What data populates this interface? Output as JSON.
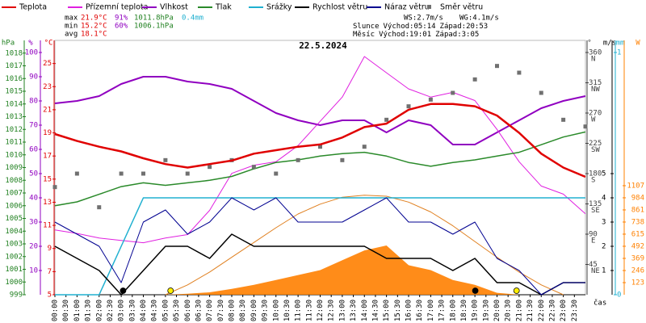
{
  "chart_data": {
    "type": "line",
    "title": "22.5.2024",
    "x_label": "čas",
    "xlim": [
      0,
      24
    ],
    "x": [
      0,
      1,
      2,
      3,
      4,
      5,
      6,
      7,
      8,
      9,
      10,
      11,
      12,
      13,
      14,
      15,
      16,
      17,
      18,
      19,
      20,
      21,
      22,
      23,
      24
    ],
    "xticks": [
      {
        "value": 0,
        "label": "00:00"
      },
      {
        "value": 0.5,
        "label": "00:30"
      },
      {
        "value": 1,
        "label": "01:00"
      },
      {
        "value": 1.5,
        "label": "01:30"
      },
      {
        "value": 2,
        "label": "02:00"
      },
      {
        "value": 2.5,
        "label": "02:30"
      },
      {
        "value": 3,
        "label": "03:00"
      },
      {
        "value": 3.5,
        "label": "03:30"
      },
      {
        "value": 4,
        "label": "04:00"
      },
      {
        "value": 4.5,
        "label": "04:30"
      },
      {
        "value": 5,
        "label": "05:00"
      },
      {
        "value": 5.5,
        "label": "05:30"
      },
      {
        "value": 6,
        "label": "06:00"
      },
      {
        "value": 6.5,
        "label": "06:30"
      },
      {
        "value": 7,
        "label": "07:00"
      },
      {
        "value": 7.5,
        "label": "07:30"
      },
      {
        "value": 8,
        "label": "08:00"
      },
      {
        "value": 8.5,
        "label": "08:30"
      },
      {
        "value": 9,
        "label": "09:00"
      },
      {
        "value": 9.5,
        "label": "09:30"
      },
      {
        "value": 10,
        "label": "10:00"
      },
      {
        "value": 10.5,
        "label": "10:30"
      },
      {
        "value": 11,
        "label": "11:00"
      },
      {
        "value": 11.5,
        "label": "11:30"
      },
      {
        "value": 12,
        "label": "12:00"
      },
      {
        "value": 12.5,
        "label": "12:30"
      },
      {
        "value": 13,
        "label": "13:00"
      },
      {
        "value": 13.5,
        "label": "13:30"
      },
      {
        "value": 14,
        "label": "14:00"
      },
      {
        "value": 14.5,
        "label": "14:30"
      },
      {
        "value": 15,
        "label": "15:00"
      },
      {
        "value": 15.5,
        "label": "15:30"
      },
      {
        "value": 16,
        "label": "16:00"
      },
      {
        "value": 16.5,
        "label": "16:30"
      },
      {
        "value": 17,
        "label": "17:00"
      },
      {
        "value": 17.5,
        "label": "17:30"
      },
      {
        "value": 18,
        "label": "18:00"
      },
      {
        "value": 18.5,
        "label": "18:30"
      },
      {
        "value": 19,
        "label": "19:00"
      },
      {
        "value": 19.5,
        "label": "19:30"
      },
      {
        "value": 20,
        "label": "20:00"
      },
      {
        "value": 20.5,
        "label": "20:30"
      },
      {
        "value": 21,
        "label": "21:00"
      },
      {
        "value": 21.5,
        "label": "21:30"
      },
      {
        "value": 22,
        "label": "22:00"
      },
      {
        "value": 22.5,
        "label": "22:30"
      },
      {
        "value": 23,
        "label": "23:00"
      },
      {
        "value": 23.5,
        "label": "23:30"
      }
    ],
    "axes": {
      "hpa": {
        "unit": "hPa",
        "color": "#208020",
        "ylim": [
          999,
          1019
        ],
        "yticks": [
          999,
          1000,
          1001,
          1002,
          1003,
          1004,
          1005,
          1006,
          1007,
          1008,
          1009,
          1010,
          1011,
          1012,
          1013,
          1014,
          1015,
          1016,
          1017,
          1018
        ]
      },
      "pct": {
        "unit": "%",
        "color": "#9000c0",
        "ylim": [
          0,
          105
        ],
        "yticks": [
          10,
          20,
          30,
          40,
          50,
          60,
          70,
          80,
          90,
          100
        ]
      },
      "temp": {
        "unit": "°C",
        "color": "#e00000",
        "ylim": [
          5,
          27
        ],
        "yticks": [
          5,
          7,
          9,
          11,
          13,
          15,
          17,
          19,
          21,
          23,
          25
        ]
      },
      "dir": {
        "unit": "°",
        "color": "#404040",
        "ylim": [
          0,
          378
        ],
        "yticks": [
          45,
          90,
          135,
          180,
          225,
          270,
          315,
          360
        ],
        "compass": [
          "NE",
          "E",
          "SE",
          "S",
          "SW",
          "W",
          "NW",
          "N"
        ]
      },
      "wind": {
        "unit": "m/s",
        "color": "#000000",
        "ylim": [
          0,
          10.5
        ],
        "yticks": [
          1,
          2,
          3,
          4,
          5
        ]
      },
      "rain": {
        "unit": "mm",
        "color": "#20b0d0",
        "ylim": [
          0,
          1.05
        ],
        "yticks": [
          0,
          1
        ]
      },
      "solar": {
        "unit": "W",
        "color": "#ff8000",
        "ylim": [
          0,
          2582
        ],
        "yticks": [
          123,
          246,
          369,
          492,
          615,
          738,
          861,
          984,
          1107
        ]
      }
    },
    "series": [
      {
        "name": "Teplota",
        "color": "#e00000",
        "axis": "temp",
        "kind": "line",
        "width": 2.5,
        "values": [
          18.9,
          18.3,
          17.8,
          17.4,
          16.8,
          16.3,
          16.0,
          16.3,
          16.6,
          17.2,
          17.5,
          17.8,
          18.0,
          18.6,
          19.5,
          19.8,
          21.0,
          21.5,
          21.5,
          21.3,
          20.5,
          19.0,
          17.2,
          16.0,
          15.2
        ]
      },
      {
        "name": "Přízemní teplota",
        "color": "#e020e0",
        "axis": "temp",
        "kind": "line",
        "width": 1,
        "values": [
          10.6,
          10.3,
          9.9,
          9.7,
          9.5,
          9.9,
          10.2,
          12.3,
          15.5,
          16.2,
          16.5,
          17.9,
          20.0,
          22.1,
          25.6,
          24.2,
          22.8,
          22.1,
          22.5,
          21.8,
          19.3,
          16.5,
          14.4,
          13.7,
          12.0
        ]
      },
      {
        "name": "Vlhkost",
        "color": "#9000c0",
        "axis": "pct",
        "kind": "line",
        "width": 2,
        "values": [
          79,
          80,
          82,
          87,
          90,
          90,
          88,
          87,
          85,
          80,
          75,
          72,
          70,
          72,
          72,
          67,
          72,
          70,
          62,
          62,
          67,
          72,
          77,
          80,
          82
        ]
      },
      {
        "name": "Tlak",
        "color": "#2a8a2a",
        "axis": "hpa",
        "kind": "line",
        "width": 1.5,
        "values": [
          1006.0,
          1006.3,
          1006.9,
          1007.5,
          1007.8,
          1007.6,
          1007.8,
          1008.0,
          1008.3,
          1008.9,
          1009.4,
          1009.6,
          1009.9,
          1010.1,
          1010.2,
          1009.9,
          1009.4,
          1009.1,
          1009.4,
          1009.6,
          1009.9,
          1010.2,
          1010.8,
          1011.4,
          1011.8
        ]
      },
      {
        "name": "Srážky",
        "color": "#20b0d0",
        "axis": "rain",
        "kind": "line",
        "width": 1.5,
        "values": [
          0,
          0,
          0,
          0.2,
          0.4,
          0.4,
          0.4,
          0.4,
          0.4,
          0.4,
          0.4,
          0.4,
          0.4,
          0.4,
          0.4,
          0.4,
          0.4,
          0.4,
          0.4,
          0.4,
          0.4,
          0.4,
          0.4,
          0.4,
          0.4
        ]
      },
      {
        "name": "Rychlost větru",
        "color": "#000000",
        "axis": "wind",
        "kind": "line",
        "width": 1.5,
        "values": [
          2,
          1.5,
          1,
          0,
          1,
          2,
          2,
          1.5,
          2.5,
          2,
          2,
          2,
          2,
          2,
          2,
          1.5,
          1.5,
          1.5,
          1,
          1.5,
          0.5,
          0.5,
          0,
          0.5,
          0.5
        ]
      },
      {
        "name": "Náraz větru",
        "color": "#000090",
        "axis": "wind",
        "kind": "line",
        "width": 1,
        "values": [
          3,
          2.5,
          2,
          0.5,
          3,
          3.5,
          2.5,
          3,
          4,
          3.5,
          4,
          3,
          3,
          3,
          3.5,
          4,
          3,
          3,
          2.5,
          3,
          1.5,
          1,
          0,
          0.5,
          0.5
        ]
      },
      {
        "name": "Směr větru",
        "color": "#707070",
        "axis": "dir",
        "kind": "scatter",
        "values": [
          160,
          180,
          130,
          180,
          180,
          200,
          180,
          190,
          200,
          190,
          180,
          200,
          220,
          200,
          220,
          260,
          280,
          290,
          300,
          320,
          340,
          330,
          300,
          260,
          250
        ]
      },
      {
        "color": "#ff8000",
        "axis": "solar",
        "kind": "area",
        "values": [
          0,
          0,
          0,
          0,
          0,
          0,
          10,
          25,
          60,
          100,
          150,
          200,
          250,
          350,
          450,
          500,
          300,
          250,
          150,
          100,
          20,
          0,
          0,
          0,
          0
        ]
      },
      {
        "color": "#e08020",
        "axis": "solar",
        "kind": "line",
        "width": 1,
        "values": [
          null,
          null,
          null,
          null,
          null,
          0,
          100,
          230,
          380,
          530,
          680,
          820,
          920,
          990,
          1010,
          1000,
          940,
          840,
          700,
          540,
          380,
          230,
          100,
          0,
          null
        ]
      }
    ],
    "stats": [
      {
        "label": "max",
        "temp": "21.9°C",
        "hum": "91%",
        "press": "1011.8hPa",
        "rain": "0.4mm"
      },
      {
        "label": "min",
        "temp": "15.2°C",
        "hum": "60%",
        "press": "1006.1hPa"
      },
      {
        "label": "avg",
        "temp": "18.1°C"
      }
    ],
    "wind_info": {
      "ws": "WS:2.7m/s",
      "wg": "WG:4.1m/s"
    },
    "sun": {
      "label": "Slunce",
      "rise_label": "Východ:",
      "rise": "05:14",
      "set_label": "Západ:",
      "set": "20:53"
    },
    "moon": {
      "label": "Měsíc",
      "rise_label": "Východ:",
      "rise": "19:01",
      "set_label": "Západ:",
      "set": "3:05"
    }
  }
}
